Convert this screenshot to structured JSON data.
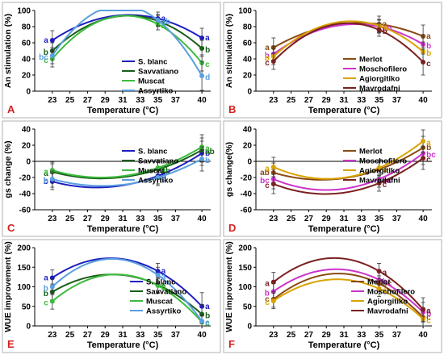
{
  "figure": {
    "title": ""
  },
  "chart_data": [
    {
      "type": "line",
      "panel_label": "A",
      "xlabel": "Temperature (°C)",
      "ylabel": "An stimulation (%)",
      "xlim": [
        21,
        41
      ],
      "ylim": [
        0,
        100
      ],
      "xticks": [
        23,
        25,
        27,
        29,
        31,
        33,
        35,
        37,
        40
      ],
      "yticks": [
        0,
        20,
        40,
        60,
        80,
        100
      ],
      "grid": false,
      "legend_position": "center",
      "x": [
        23,
        35,
        40
      ],
      "series": [
        {
          "name": "S. blanc",
          "color": "#1f1fbf",
          "values": [
            63,
            90,
            66
          ],
          "errors": [
            12,
            8,
            12
          ],
          "letters": [
            "a",
            "a",
            "a"
          ]
        },
        {
          "name": "Savvatiano",
          "color": "#1a5e1a",
          "values": [
            50,
            87,
            53
          ],
          "errors": [
            10,
            7,
            10
          ],
          "letters": [
            "b",
            "a",
            "b"
          ]
        },
        {
          "name": "Muscat",
          "color": "#3dbb3d",
          "values": [
            40,
            83,
            35
          ],
          "errors": [
            10,
            7,
            10
          ],
          "letters": [
            "c",
            "b",
            "c"
          ]
        },
        {
          "name": "Assyrtiko",
          "color": "#5a9fe0",
          "values": [
            44,
            88,
            19
          ],
          "errors": [
            10,
            7,
            18
          ],
          "letters": [
            "bc",
            "ab",
            "d"
          ]
        }
      ]
    },
    {
      "type": "line",
      "panel_label": "B",
      "xlabel": "Temperature (°C)",
      "ylabel": "An stimulation (%)",
      "xlim": [
        21,
        41
      ],
      "ylim": [
        0,
        100
      ],
      "xticks": [
        23,
        25,
        27,
        29,
        31,
        33,
        35,
        37,
        40
      ],
      "yticks": [
        0,
        20,
        40,
        60,
        80,
        100
      ],
      "grid": false,
      "legend_position": "center",
      "x": [
        23,
        35,
        40
      ],
      "series": [
        {
          "name": "Merlot",
          "color": "#8a4a12",
          "values": [
            54,
            83,
            68
          ],
          "errors": [
            12,
            10,
            14
          ],
          "letters": [
            "a",
            "a",
            "a"
          ]
        },
        {
          "name": "Moschofilero",
          "color": "#cc33cc",
          "values": [
            46,
            80,
            58
          ],
          "errors": [
            10,
            8,
            12
          ],
          "letters": [
            "b",
            "ab",
            "b"
          ]
        },
        {
          "name": "Agiorgitiko",
          "color": "#d9a300",
          "values": [
            43,
            81,
            49
          ],
          "errors": [
            10,
            8,
            12
          ],
          "letters": [
            "b",
            "b",
            "b"
          ]
        },
        {
          "name": "Mavrodafni",
          "color": "#7a2020",
          "values": [
            37,
            76,
            36
          ],
          "errors": [
            10,
            8,
            16
          ],
          "letters": [
            "c",
            "b",
            "c"
          ]
        }
      ]
    },
    {
      "type": "line",
      "panel_label": "C",
      "xlabel": "Temperature (°C)",
      "ylabel": "gs change (%)",
      "xlim": [
        21,
        41
      ],
      "ylim": [
        -60,
        40
      ],
      "xticks": [
        23,
        25,
        27,
        29,
        31,
        33,
        35,
        37,
        40
      ],
      "yticks": [
        -60,
        -40,
        -20,
        0,
        20,
        40
      ],
      "grid": false,
      "legend_position": "top-center",
      "x": [
        23,
        35,
        40
      ],
      "series": [
        {
          "name": "S. blanc",
          "color": "#1f1fbf",
          "values": [
            -25,
            -18,
            10
          ],
          "errors": [
            10,
            10,
            15
          ],
          "letters": [
            "b",
            "b",
            "b"
          ]
        },
        {
          "name": "Savvatiano",
          "color": "#1a5e1a",
          "values": [
            -13,
            -10,
            14
          ],
          "errors": [
            10,
            10,
            15
          ],
          "letters": [
            "a",
            "ab",
            "ab"
          ]
        },
        {
          "name": "Muscat",
          "color": "#3dbb3d",
          "values": [
            -11,
            -8,
            18
          ],
          "errors": [
            10,
            10,
            15
          ],
          "letters": [
            "a",
            "a",
            "a"
          ]
        },
        {
          "name": "Assyrtiko",
          "color": "#5a9fe0",
          "values": [
            -22,
            -20,
            3
          ],
          "errors": [
            10,
            10,
            15
          ],
          "letters": [
            "b",
            "b",
            "b"
          ]
        }
      ]
    },
    {
      "type": "line",
      "panel_label": "D",
      "xlabel": "Temperature (°C)",
      "ylabel": "gs change(%)",
      "xlim": [
        21,
        41
      ],
      "ylim": [
        -60,
        40
      ],
      "xticks": [
        23,
        25,
        27,
        29,
        31,
        33,
        35,
        37,
        40
      ],
      "yticks": [
        -60,
        -40,
        -20,
        0,
        20,
        40
      ],
      "grid": false,
      "legend_position": "top-center",
      "x": [
        23,
        35,
        40
      ],
      "series": [
        {
          "name": "Merlot",
          "color": "#8a4a12",
          "values": [
            -14,
            -10,
            17
          ],
          "errors": [
            12,
            10,
            14
          ],
          "letters": [
            "ab",
            "a",
            "b"
          ]
        },
        {
          "name": "Moschofilero",
          "color": "#cc33cc",
          "values": [
            -22,
            -22,
            10
          ],
          "errors": [
            12,
            10,
            14
          ],
          "letters": [
            "bc",
            "bc",
            "bc"
          ]
        },
        {
          "name": "Agiorgitiko",
          "color": "#d9a300",
          "values": [
            -7,
            -8,
            25
          ],
          "errors": [
            12,
            10,
            14
          ],
          "letters": [
            "a",
            "a",
            "a"
          ]
        },
        {
          "name": "Mavrodafni",
          "color": "#7a2020",
          "values": [
            -28,
            -27,
            4
          ],
          "errors": [
            12,
            10,
            14
          ],
          "letters": [
            "c",
            "c",
            "c"
          ]
        }
      ]
    },
    {
      "type": "line",
      "panel_label": "E",
      "xlabel": "Temperature (°C)",
      "ylabel": "WUE improvement (%)",
      "xlim": [
        21,
        41
      ],
      "ylim": [
        0,
        200
      ],
      "xticks": [
        23,
        25,
        27,
        29,
        31,
        33,
        35,
        37,
        40
      ],
      "yticks": [
        0,
        50,
        100,
        150,
        200
      ],
      "grid": false,
      "legend_position": "right",
      "x": [
        23,
        35,
        40
      ],
      "series": [
        {
          "name": "S. blanc",
          "color": "#1f1fbf",
          "values": [
            123,
            140,
            50
          ],
          "errors": [
            20,
            20,
            35
          ],
          "letters": [
            "a",
            "a",
            "a"
          ]
        },
        {
          "name": "Savvatiano",
          "color": "#1a5e1a",
          "values": [
            87,
            105,
            30
          ],
          "errors": [
            20,
            20,
            25
          ],
          "letters": [
            "b",
            "c",
            "b"
          ]
        },
        {
          "name": "Muscat",
          "color": "#3dbb3d",
          "values": [
            63,
            103,
            10
          ],
          "errors": [
            20,
            20,
            15
          ],
          "letters": [
            "c",
            "b",
            "c"
          ]
        },
        {
          "name": "Assyrtiko",
          "color": "#5a9fe0",
          "values": [
            100,
            130,
            12
          ],
          "errors": [
            20,
            20,
            15
          ],
          "letters": [
            "b",
            "a",
            "c"
          ]
        }
      ]
    },
    {
      "type": "line",
      "panel_label": "F",
      "xlabel": "Temperature (°C)",
      "ylabel": "WUE improvement (%)",
      "xlim": [
        21,
        41
      ],
      "ylim": [
        0,
        200
      ],
      "xticks": [
        23,
        25,
        27,
        29,
        31,
        33,
        35,
        37,
        40
      ],
      "yticks": [
        0,
        50,
        100,
        150,
        200
      ],
      "grid": false,
      "legend_position": "right",
      "x": [
        23,
        35,
        40
      ],
      "series": [
        {
          "name": "Merlot",
          "color": "#8a4a12",
          "values": [
            68,
            108,
            22
          ],
          "errors": [
            20,
            20,
            25
          ],
          "letters": [
            "c",
            "bc",
            "c"
          ]
        },
        {
          "name": "Moschofilero",
          "color": "#cc33cc",
          "values": [
            88,
            118,
            35
          ],
          "errors": [
            20,
            20,
            25
          ],
          "letters": [
            "b",
            "b",
            "b"
          ]
        },
        {
          "name": "Agiorgitiko",
          "color": "#d9a300",
          "values": [
            64,
            95,
            18
          ],
          "errors": [
            20,
            20,
            25
          ],
          "letters": [
            "c",
            "c",
            "c"
          ]
        },
        {
          "name": "Mavrodafni",
          "color": "#7a2020",
          "values": [
            112,
            140,
            42
          ],
          "errors": [
            25,
            20,
            30
          ],
          "letters": [
            "a",
            "a",
            "a"
          ]
        }
      ]
    }
  ]
}
